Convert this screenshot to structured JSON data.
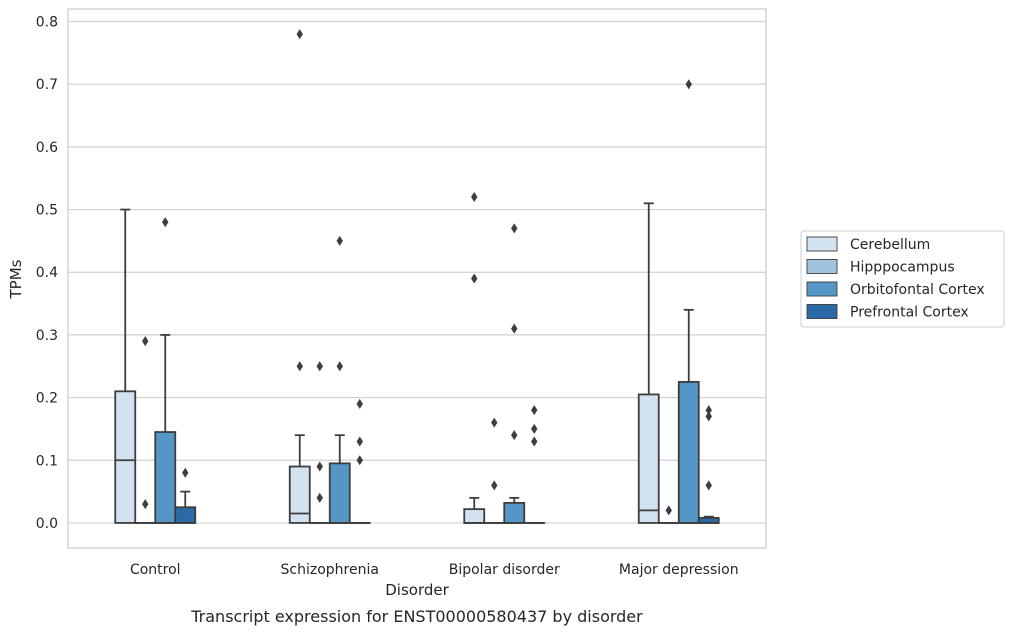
{
  "chart_data": {
    "type": "box",
    "caption": "Transcript expression for ENST00000580437 by disorder",
    "xlabel": "Disorder",
    "ylabel": "TPMs",
    "ylim": [
      -0.04,
      0.82
    ],
    "yticks": [
      0.0,
      0.1,
      0.2,
      0.3,
      0.4,
      0.5,
      0.6,
      0.7,
      0.8
    ],
    "ytick_labels": [
      "0.0",
      "0.1",
      "0.2",
      "0.3",
      "0.4",
      "0.5",
      "0.6",
      "0.7",
      "0.8"
    ],
    "grid": true,
    "legend_position": "right",
    "categories": [
      "Control",
      "Schizophrenia",
      "Bipolar disorder",
      "Major depression"
    ],
    "series": [
      {
        "name": "Cerebellum",
        "color": "#d3e2f0",
        "boxes": [
          {
            "min": 0.0,
            "q1": 0.0,
            "median": 0.1,
            "q3": 0.21,
            "max": 0.5,
            "outliers": []
          },
          {
            "min": 0.0,
            "q1": 0.0,
            "median": 0.015,
            "q3": 0.09,
            "max": 0.14,
            "outliers": [
              0.78,
              0.25
            ]
          },
          {
            "min": 0.0,
            "q1": 0.0,
            "median": 0.0,
            "q3": 0.022,
            "max": 0.04,
            "outliers": [
              0.52,
              0.39
            ]
          },
          {
            "min": 0.0,
            "q1": 0.0,
            "median": 0.02,
            "q3": 0.205,
            "max": 0.51,
            "outliers": []
          }
        ]
      },
      {
        "name": "Hipppocampus",
        "color": "#a0c4de",
        "boxes": [
          {
            "min": 0.0,
            "q1": 0.0,
            "median": 0.0,
            "q3": 0.0,
            "max": 0.0,
            "outliers": [
              0.29,
              0.03
            ]
          },
          {
            "min": 0.0,
            "q1": 0.0,
            "median": 0.0,
            "q3": 0.0,
            "max": 0.0,
            "outliers": [
              0.25,
              0.09,
              0.04
            ]
          },
          {
            "min": 0.0,
            "q1": 0.0,
            "median": 0.0,
            "q3": 0.0,
            "max": 0.0,
            "outliers": [
              0.16,
              0.06
            ]
          },
          {
            "min": 0.0,
            "q1": 0.0,
            "median": 0.0,
            "q3": 0.0,
            "max": 0.0,
            "outliers": [
              0.02
            ]
          }
        ]
      },
      {
        "name": "Orbitofontal Cortex",
        "color": "#5497c6",
        "boxes": [
          {
            "min": 0.0,
            "q1": 0.0,
            "median": 0.0,
            "q3": 0.145,
            "max": 0.3,
            "outliers": [
              0.48
            ]
          },
          {
            "min": 0.0,
            "q1": 0.0,
            "median": 0.0,
            "q3": 0.095,
            "max": 0.14,
            "outliers": [
              0.45,
              0.25
            ]
          },
          {
            "min": 0.0,
            "q1": 0.0,
            "median": 0.0,
            "q3": 0.032,
            "max": 0.04,
            "outliers": [
              0.47,
              0.31,
              0.14
            ]
          },
          {
            "min": 0.0,
            "q1": 0.0,
            "median": 0.0,
            "q3": 0.225,
            "max": 0.34,
            "outliers": [
              0.7
            ]
          }
        ]
      },
      {
        "name": "Prefrontal Cortex",
        "color": "#2b6aa6",
        "boxes": [
          {
            "min": 0.0,
            "q1": 0.0,
            "median": 0.0,
            "q3": 0.025,
            "max": 0.05,
            "outliers": [
              0.08
            ]
          },
          {
            "min": 0.0,
            "q1": 0.0,
            "median": 0.0,
            "q3": 0.0,
            "max": 0.0,
            "outliers": [
              0.19,
              0.13,
              0.1
            ]
          },
          {
            "min": 0.0,
            "q1": 0.0,
            "median": 0.0,
            "q3": 0.0,
            "max": 0.0,
            "outliers": [
              0.18,
              0.15,
              0.13
            ]
          },
          {
            "min": 0.0,
            "q1": 0.0,
            "median": 0.0,
            "q3": 0.008,
            "max": 0.01,
            "outliers": [
              0.18,
              0.17,
              0.06
            ]
          }
        ]
      }
    ]
  }
}
